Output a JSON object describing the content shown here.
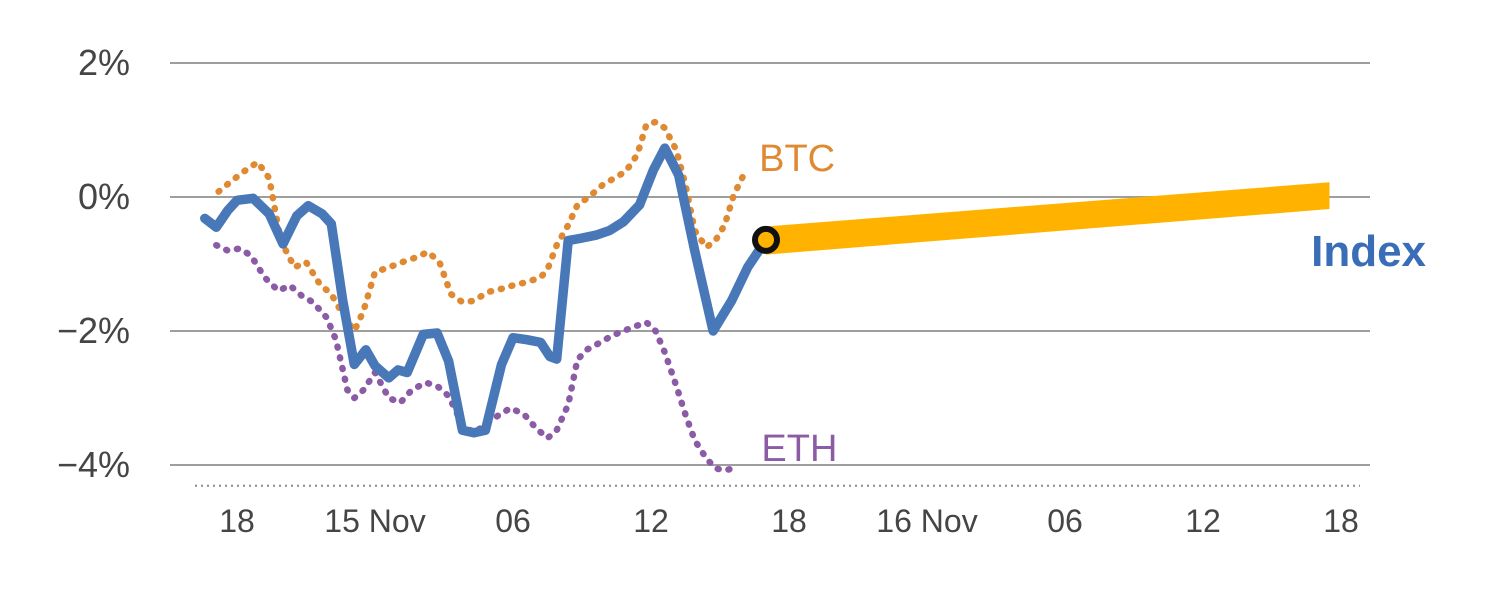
{
  "chart_data": {
    "type": "line",
    "title": "",
    "xlabel": "",
    "ylabel": "",
    "ylim": [
      -4.4,
      2.4
    ],
    "grid": true,
    "yticks": [
      {
        "value": 2,
        "label": "2%"
      },
      {
        "value": 0,
        "label": "0%"
      },
      {
        "value": -2,
        "label": "−2%"
      },
      {
        "value": -4,
        "label": "−4%"
      }
    ],
    "xticks": [
      {
        "hour": 18,
        "label": "18"
      },
      {
        "hour": 24,
        "label": "15 Nov"
      },
      {
        "hour": 30,
        "label": "06"
      },
      {
        "hour": 36,
        "label": "12"
      },
      {
        "hour": 42,
        "label": "18"
      },
      {
        "hour": 48,
        "label": "16 Nov"
      },
      {
        "hour": 54,
        "label": "06"
      },
      {
        "hour": 60,
        "label": "12"
      },
      {
        "hour": 66,
        "label": "18"
      }
    ],
    "x_unit": "hours since 14 Nov 00:00",
    "series": [
      {
        "name": "Index",
        "color": "#4878b8",
        "style": "solid",
        "width": 9.5,
        "points": [
          [
            16.6,
            -0.32
          ],
          [
            17.1,
            -0.45
          ],
          [
            17.6,
            -0.2
          ],
          [
            18.0,
            -0.05
          ],
          [
            18.7,
            -0.02
          ],
          [
            19.4,
            -0.25
          ],
          [
            20.0,
            -0.7
          ],
          [
            20.6,
            -0.28
          ],
          [
            21.1,
            -0.13
          ],
          [
            21.7,
            -0.25
          ],
          [
            22.1,
            -0.4
          ],
          [
            22.6,
            -1.55
          ],
          [
            23.1,
            -2.5
          ],
          [
            23.6,
            -2.28
          ],
          [
            24.0,
            -2.52
          ],
          [
            24.6,
            -2.7
          ],
          [
            25.0,
            -2.58
          ],
          [
            25.4,
            -2.62
          ],
          [
            26.1,
            -2.05
          ],
          [
            26.7,
            -2.03
          ],
          [
            27.2,
            -2.45
          ],
          [
            27.8,
            -3.48
          ],
          [
            28.3,
            -3.52
          ],
          [
            28.8,
            -3.48
          ],
          [
            29.5,
            -2.5
          ],
          [
            30.0,
            -2.1
          ],
          [
            30.6,
            -2.13
          ],
          [
            31.2,
            -2.17
          ],
          [
            31.6,
            -2.38
          ],
          [
            31.9,
            -2.42
          ],
          [
            32.4,
            -0.65
          ],
          [
            32.9,
            -0.62
          ],
          [
            33.6,
            -0.57
          ],
          [
            34.2,
            -0.5
          ],
          [
            34.8,
            -0.37
          ],
          [
            35.5,
            -0.12
          ],
          [
            36.1,
            0.4
          ],
          [
            36.6,
            0.73
          ],
          [
            37.2,
            0.33
          ],
          [
            37.9,
            -0.8
          ],
          [
            38.7,
            -2.0
          ],
          [
            39.5,
            -1.55
          ],
          [
            40.2,
            -1.05
          ],
          [
            41.0,
            -0.64
          ]
        ]
      },
      {
        "name": "BTC",
        "color": "#df8a33",
        "style": "dotted",
        "width": 6.5,
        "points": [
          [
            17.2,
            0.08
          ],
          [
            17.8,
            0.25
          ],
          [
            18.3,
            0.38
          ],
          [
            18.9,
            0.52
          ],
          [
            19.4,
            0.28
          ],
          [
            19.9,
            -0.65
          ],
          [
            20.5,
            -1.05
          ],
          [
            21.0,
            -0.97
          ],
          [
            21.6,
            -1.3
          ],
          [
            22.1,
            -1.45
          ],
          [
            22.6,
            -1.75
          ],
          [
            23.1,
            -2.0
          ],
          [
            23.5,
            -1.7
          ],
          [
            24.0,
            -1.12
          ],
          [
            24.6,
            -1.05
          ],
          [
            25.2,
            -0.97
          ],
          [
            25.8,
            -0.9
          ],
          [
            26.3,
            -0.82
          ],
          [
            26.8,
            -0.97
          ],
          [
            27.3,
            -1.45
          ],
          [
            27.8,
            -1.57
          ],
          [
            28.3,
            -1.55
          ],
          [
            28.9,
            -1.42
          ],
          [
            29.5,
            -1.37
          ],
          [
            30.0,
            -1.32
          ],
          [
            30.6,
            -1.27
          ],
          [
            31.2,
            -1.2
          ],
          [
            31.5,
            -1.08
          ],
          [
            31.9,
            -0.72
          ],
          [
            32.4,
            -0.42
          ],
          [
            32.8,
            -0.12
          ],
          [
            33.3,
            0.0
          ],
          [
            33.9,
            0.18
          ],
          [
            34.4,
            0.28
          ],
          [
            34.9,
            0.38
          ],
          [
            35.4,
            0.63
          ],
          [
            35.8,
            1.08
          ],
          [
            36.2,
            1.12
          ],
          [
            36.6,
            1.03
          ],
          [
            37.1,
            0.7
          ],
          [
            37.5,
            0.18
          ],
          [
            37.9,
            -0.5
          ],
          [
            38.4,
            -0.75
          ],
          [
            38.8,
            -0.65
          ],
          [
            39.2,
            -0.42
          ],
          [
            39.6,
            0.03
          ],
          [
            40.1,
            0.38
          ]
        ]
      },
      {
        "name": "ETH",
        "color": "#8b5ba6",
        "style": "dotted",
        "width": 6.5,
        "points": [
          [
            17.1,
            -0.72
          ],
          [
            17.6,
            -0.8
          ],
          [
            18.1,
            -0.77
          ],
          [
            18.6,
            -0.87
          ],
          [
            19.2,
            -1.2
          ],
          [
            19.8,
            -1.4
          ],
          [
            20.3,
            -1.32
          ],
          [
            20.8,
            -1.47
          ],
          [
            21.3,
            -1.57
          ],
          [
            21.9,
            -1.8
          ],
          [
            22.3,
            -2.13
          ],
          [
            22.8,
            -2.88
          ],
          [
            23.1,
            -3.0
          ],
          [
            23.5,
            -2.88
          ],
          [
            24.0,
            -2.62
          ],
          [
            24.6,
            -3.0
          ],
          [
            25.1,
            -3.07
          ],
          [
            25.6,
            -2.88
          ],
          [
            26.2,
            -2.77
          ],
          [
            26.7,
            -2.82
          ],
          [
            27.2,
            -2.97
          ],
          [
            27.8,
            -3.4
          ],
          [
            28.3,
            -3.52
          ],
          [
            28.8,
            -3.4
          ],
          [
            29.4,
            -3.25
          ],
          [
            29.9,
            -3.15
          ],
          [
            30.5,
            -3.25
          ],
          [
            31.0,
            -3.45
          ],
          [
            31.5,
            -3.6
          ],
          [
            31.9,
            -3.48
          ],
          [
            32.4,
            -3.1
          ],
          [
            32.8,
            -2.43
          ],
          [
            33.2,
            -2.28
          ],
          [
            33.8,
            -2.17
          ],
          [
            34.3,
            -2.07
          ],
          [
            34.8,
            -2.0
          ],
          [
            35.4,
            -1.92
          ],
          [
            35.8,
            -1.87
          ],
          [
            36.2,
            -2.0
          ],
          [
            36.6,
            -2.32
          ],
          [
            37.1,
            -2.82
          ],
          [
            37.5,
            -3.25
          ],
          [
            37.9,
            -3.63
          ],
          [
            38.4,
            -3.9
          ],
          [
            38.8,
            -4.05
          ],
          [
            39.2,
            -4.08
          ],
          [
            39.6,
            -4.05
          ]
        ]
      }
    ],
    "projection_band": {
      "name": "Index projection",
      "color": "#ffb300",
      "x": [
        41.0,
        65.5
      ],
      "top": [
        -0.44,
        0.22
      ],
      "bottom": [
        -0.86,
        -0.18
      ]
    },
    "marker": {
      "x": 41.0,
      "y": -0.64,
      "fill": "#ffb300",
      "ring_color": "#111111"
    },
    "labels": [
      {
        "text": "BTC",
        "color": "#df8a33",
        "x": 40.7,
        "top": 0.85,
        "size": 38,
        "bold": false
      },
      {
        "text": "ETH",
        "color": "#8b5ba6",
        "x": 40.8,
        "top": -3.48,
        "size": 38,
        "bold": false
      },
      {
        "text": "Index",
        "color": "#3a6db8",
        "x": 64.7,
        "top": -0.49,
        "size": 44,
        "bold": true
      }
    ],
    "axis": {
      "grid_color": "#9e9e9e",
      "text_color": "#454545",
      "baseline_pct": -4.31
    }
  }
}
